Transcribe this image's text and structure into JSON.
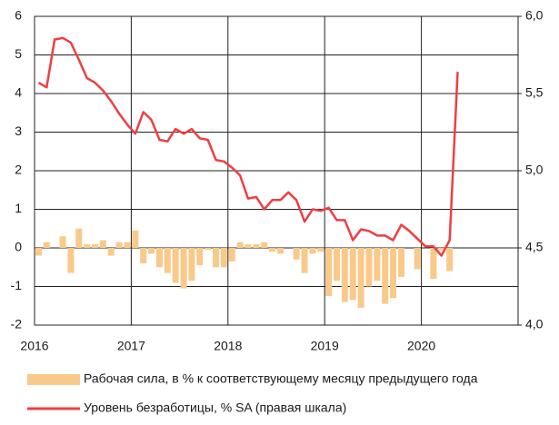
{
  "chart_data": {
    "type": "bar_line",
    "xlim": [
      2016,
      2021
    ],
    "xticks": [
      2016,
      2017,
      2018,
      2019,
      2020
    ],
    "ylim": [
      -2,
      6
    ],
    "yticks": [
      -2,
      -1,
      0,
      1,
      2,
      3,
      4,
      5,
      6
    ],
    "y2lim": [
      4,
      6
    ],
    "y2ticks": [
      {
        "value": 4,
        "label": "4,0"
      },
      {
        "value": 4.5,
        "label": "4,5"
      },
      {
        "value": 5,
        "label": "5,0"
      },
      {
        "value": 5.5,
        "label": "5,5"
      },
      {
        "value": 6,
        "label": "6,0"
      }
    ],
    "grid": true,
    "series": [
      {
        "name": "Рабочая сила, в % к соответствующему месяцу предыдущего года",
        "type": "bar",
        "color": "#f9c98a",
        "x": [
          2016.042,
          2016.125,
          2016.208,
          2016.292,
          2016.375,
          2016.458,
          2016.542,
          2016.625,
          2016.708,
          2016.792,
          2016.875,
          2016.958,
          2017.042,
          2017.125,
          2017.208,
          2017.292,
          2017.375,
          2017.458,
          2017.542,
          2017.625,
          2017.708,
          2017.792,
          2017.875,
          2017.958,
          2018.042,
          2018.125,
          2018.208,
          2018.292,
          2018.375,
          2018.458,
          2018.542,
          2018.625,
          2018.708,
          2018.792,
          2018.875,
          2018.958,
          2019.042,
          2019.125,
          2019.208,
          2019.292,
          2019.375,
          2019.458,
          2019.542,
          2019.625,
          2019.708,
          2019.792,
          2019.875,
          2019.958,
          2020.042,
          2020.125,
          2020.208,
          2020.292
        ],
        "values": [
          -0.2,
          0.15,
          0.0,
          0.3,
          -0.65,
          0.5,
          0.1,
          0.1,
          0.2,
          -0.2,
          0.15,
          0.15,
          0.45,
          -0.4,
          -0.15,
          -0.5,
          -0.65,
          -0.9,
          -1.05,
          -0.85,
          -0.45,
          -0.05,
          -0.5,
          -0.5,
          -0.35,
          0.15,
          0.1,
          0.1,
          0.15,
          -0.1,
          -0.15,
          0.0,
          -0.3,
          -0.65,
          -0.15,
          -0.1,
          -1.25,
          -0.85,
          -1.4,
          -1.35,
          -1.55,
          -1.0,
          -0.85,
          -1.45,
          -1.3,
          -0.75,
          0.0,
          -0.55,
          0.0,
          -0.8,
          -0.05,
          -0.6
        ]
      },
      {
        "name": "Уровень безработицы, % SA (правая шкала)",
        "type": "line",
        "axis": "y2",
        "color": "#ef3e42",
        "x": [
          2016.042,
          2016.125,
          2016.208,
          2016.292,
          2016.375,
          2016.458,
          2016.542,
          2016.625,
          2016.708,
          2016.792,
          2016.875,
          2016.958,
          2017.042,
          2017.125,
          2017.208,
          2017.292,
          2017.375,
          2017.458,
          2017.542,
          2017.625,
          2017.708,
          2017.792,
          2017.875,
          2017.958,
          2018.042,
          2018.125,
          2018.208,
          2018.292,
          2018.375,
          2018.458,
          2018.542,
          2018.625,
          2018.708,
          2018.792,
          2018.875,
          2018.958,
          2019.042,
          2019.125,
          2019.208,
          2019.292,
          2019.375,
          2019.458,
          2019.542,
          2019.625,
          2019.708,
          2019.792,
          2019.875,
          2019.958,
          2020.042,
          2020.125,
          2020.208,
          2020.292,
          2020.375
        ],
        "values": [
          5.57,
          5.54,
          5.85,
          5.86,
          5.83,
          5.72,
          5.6,
          5.57,
          5.52,
          5.45,
          5.37,
          5.3,
          5.24,
          5.38,
          5.33,
          5.2,
          5.19,
          5.27,
          5.24,
          5.27,
          5.21,
          5.2,
          5.07,
          5.06,
          5.02,
          4.97,
          4.82,
          4.83,
          4.75,
          4.81,
          4.81,
          4.86,
          4.81,
          4.67,
          4.75,
          4.74,
          4.76,
          4.68,
          4.68,
          4.55,
          4.62,
          4.61,
          4.58,
          4.58,
          4.55,
          4.65,
          4.61,
          4.56,
          4.51,
          4.51,
          4.45,
          4.55,
          5.64
        ]
      }
    ]
  }
}
